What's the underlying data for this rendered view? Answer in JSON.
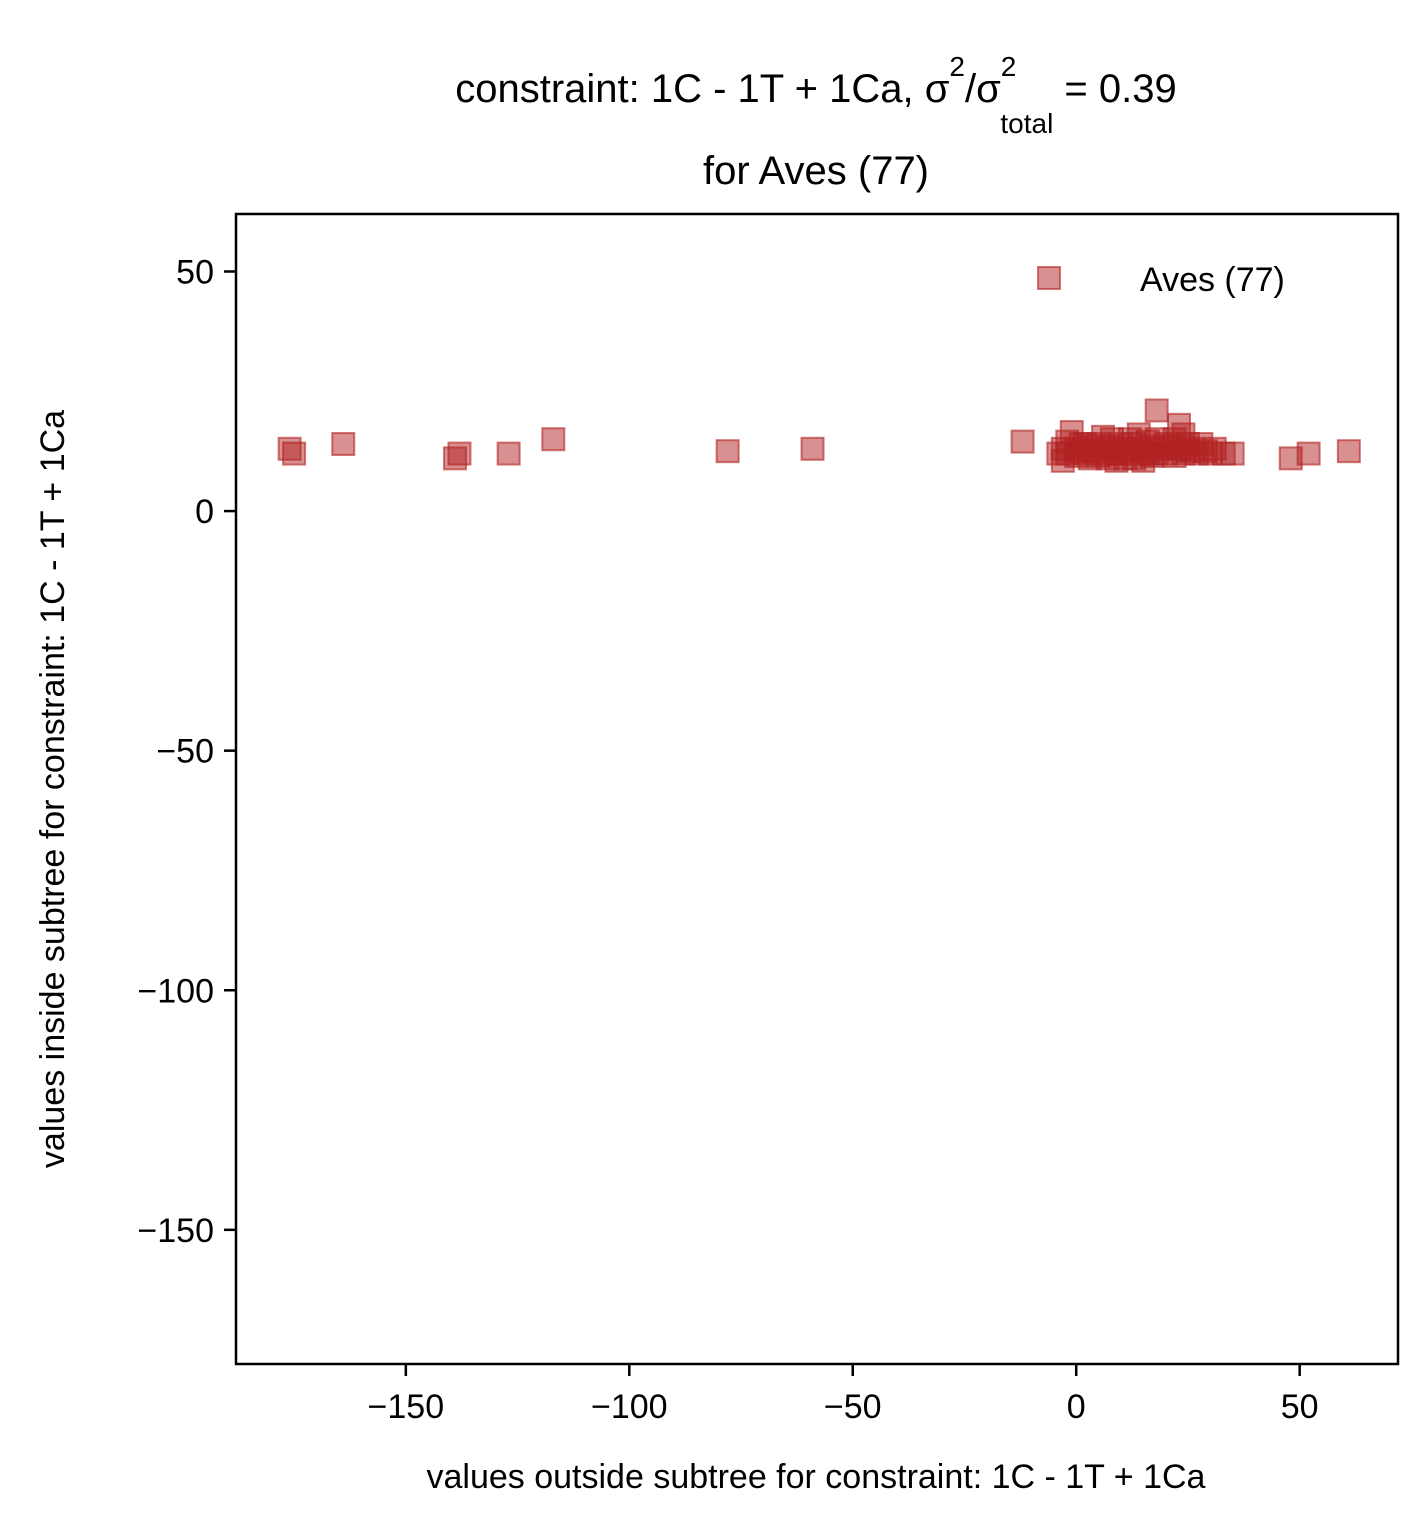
{
  "chart_data": {
    "type": "scatter",
    "title": {
      "line1_prefix": "constraint: 1C - 1T + 1Ca, σ",
      "sup1": "2",
      "slash": "/σ",
      "sup2": "2",
      "sub": "total",
      "line1_suffix": " =  0.39",
      "line2": "for Aves (77)"
    },
    "xlabel": "values outside subtree for constraint: 1C - 1T + 1Ca",
    "ylabel": "values inside subtree for constraint: 1C - 1T + 1Ca",
    "xlim": [
      -188,
      72
    ],
    "ylim": [
      -178,
      62
    ],
    "xticks": [
      -150,
      -100,
      -50,
      0,
      50
    ],
    "xtick_labels": [
      "−150",
      "−100",
      "−50",
      "0",
      "50"
    ],
    "yticks": [
      50,
      0,
      -50,
      -100,
      -150
    ],
    "ytick_labels": [
      "50",
      "0",
      "−50",
      "−100",
      "−150"
    ],
    "grid": false,
    "legend": {
      "placement": "top-right",
      "entries": [
        "Aves (77)"
      ]
    },
    "series": [
      {
        "name": "Aves (77)",
        "color": "#b22222",
        "marker": "square",
        "points": [
          [
            -176,
            13
          ],
          [
            -175,
            12
          ],
          [
            -164,
            14
          ],
          [
            -139,
            11
          ],
          [
            -138,
            12
          ],
          [
            -127,
            12
          ],
          [
            -117,
            15
          ],
          [
            -78,
            12.5
          ],
          [
            -59,
            13
          ],
          [
            -12,
            14.5
          ],
          [
            -4,
            12
          ],
          [
            -3,
            10.5
          ],
          [
            -3,
            13
          ],
          [
            -2,
            14.5
          ],
          [
            -2,
            12
          ],
          [
            -1,
            16.5
          ],
          [
            0,
            13
          ],
          [
            0,
            11.5
          ],
          [
            1,
            14
          ],
          [
            1,
            12.5
          ],
          [
            2,
            12
          ],
          [
            2,
            14
          ],
          [
            3,
            11
          ],
          [
            3,
            13.5
          ],
          [
            4,
            12.5
          ],
          [
            5,
            14
          ],
          [
            5,
            11.5
          ],
          [
            6,
            15.5
          ],
          [
            6,
            12
          ],
          [
            7,
            13
          ],
          [
            7,
            11
          ],
          [
            8,
            15
          ],
          [
            8,
            13.5
          ],
          [
            9,
            12
          ],
          [
            9,
            10.5
          ],
          [
            10,
            14
          ],
          [
            10,
            12
          ],
          [
            11,
            13
          ],
          [
            11,
            11
          ],
          [
            12,
            15
          ],
          [
            12,
            12.5
          ],
          [
            13,
            14
          ],
          [
            13,
            11
          ],
          [
            14,
            16
          ],
          [
            14,
            13
          ],
          [
            15,
            12
          ],
          [
            15,
            10.5
          ],
          [
            16,
            14.5
          ],
          [
            16,
            12
          ],
          [
            17,
            13.5
          ],
          [
            17,
            11.5
          ],
          [
            18,
            21
          ],
          [
            18,
            15
          ],
          [
            18,
            12
          ],
          [
            19,
            13
          ],
          [
            20,
            14
          ],
          [
            20,
            12
          ],
          [
            21,
            13.5
          ],
          [
            22,
            15
          ],
          [
            22,
            11.5
          ],
          [
            23,
            18
          ],
          [
            23,
            13
          ],
          [
            24,
            16
          ],
          [
            24,
            12
          ],
          [
            25,
            14
          ],
          [
            25,
            12.5
          ],
          [
            26,
            13
          ],
          [
            27,
            12
          ],
          [
            28,
            14
          ],
          [
            29,
            12.5
          ],
          [
            30,
            12
          ],
          [
            31,
            13
          ],
          [
            33,
            12
          ],
          [
            35,
            12
          ],
          [
            48,
            11
          ],
          [
            52,
            12
          ],
          [
            61,
            12.5
          ]
        ]
      }
    ]
  }
}
